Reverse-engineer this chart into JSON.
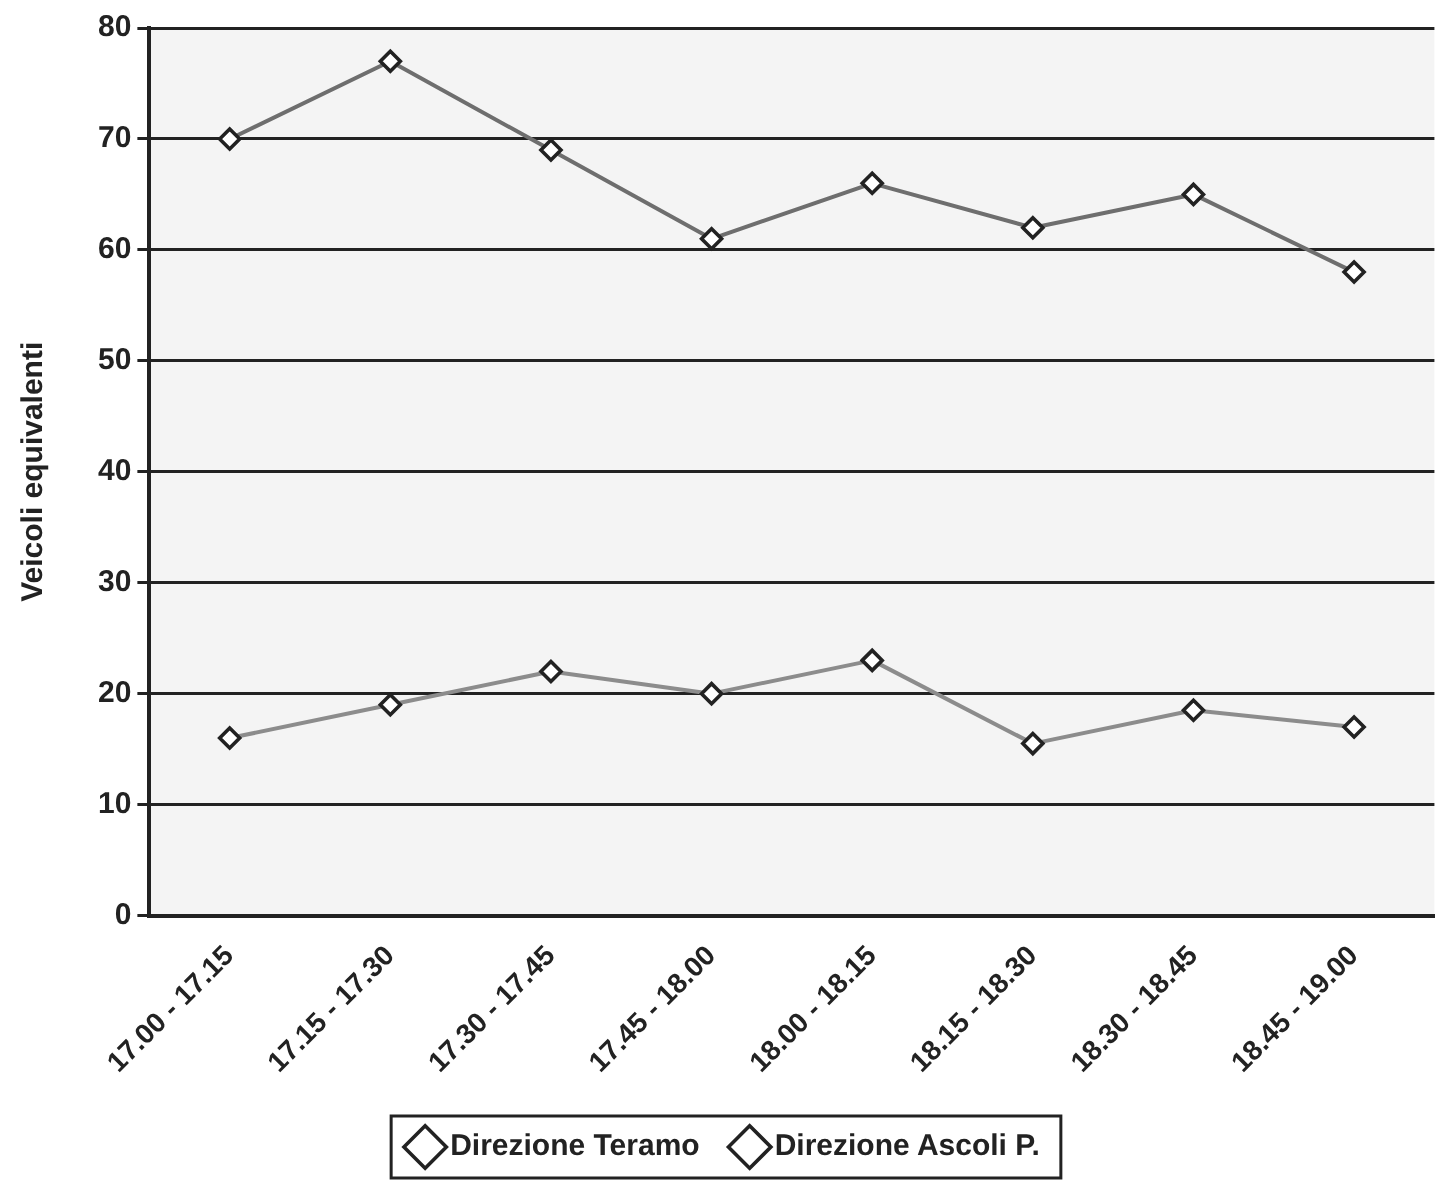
{
  "chart_data": {
    "type": "line",
    "ylabel": "Veicoli equivalenti",
    "categories": [
      "17.00 - 17.15",
      "17.15 - 17.30",
      "17.30 - 17.45",
      "17.45 - 18.00",
      "18.00 - 18.15",
      "18.15 - 18.30",
      "18.30 - 18.45",
      "18.45 - 19.00"
    ],
    "series": [
      {
        "name": "Direzione Teramo",
        "color": "#6e6e6e",
        "values": [
          70,
          77,
          69,
          61,
          66,
          62,
          65,
          58
        ]
      },
      {
        "name": "Direzione Ascoli P.",
        "color": "#8c8c8c",
        "values": [
          16,
          19,
          22,
          20,
          23,
          15.5,
          18.5,
          17
        ]
      }
    ],
    "ylim": [
      0,
      80
    ],
    "yticks": [
      0,
      10,
      20,
      30,
      40,
      50,
      60,
      70,
      80
    ],
    "grid": "y",
    "legend": "bottom",
    "marker": "diamond",
    "line_style": "solid"
  }
}
